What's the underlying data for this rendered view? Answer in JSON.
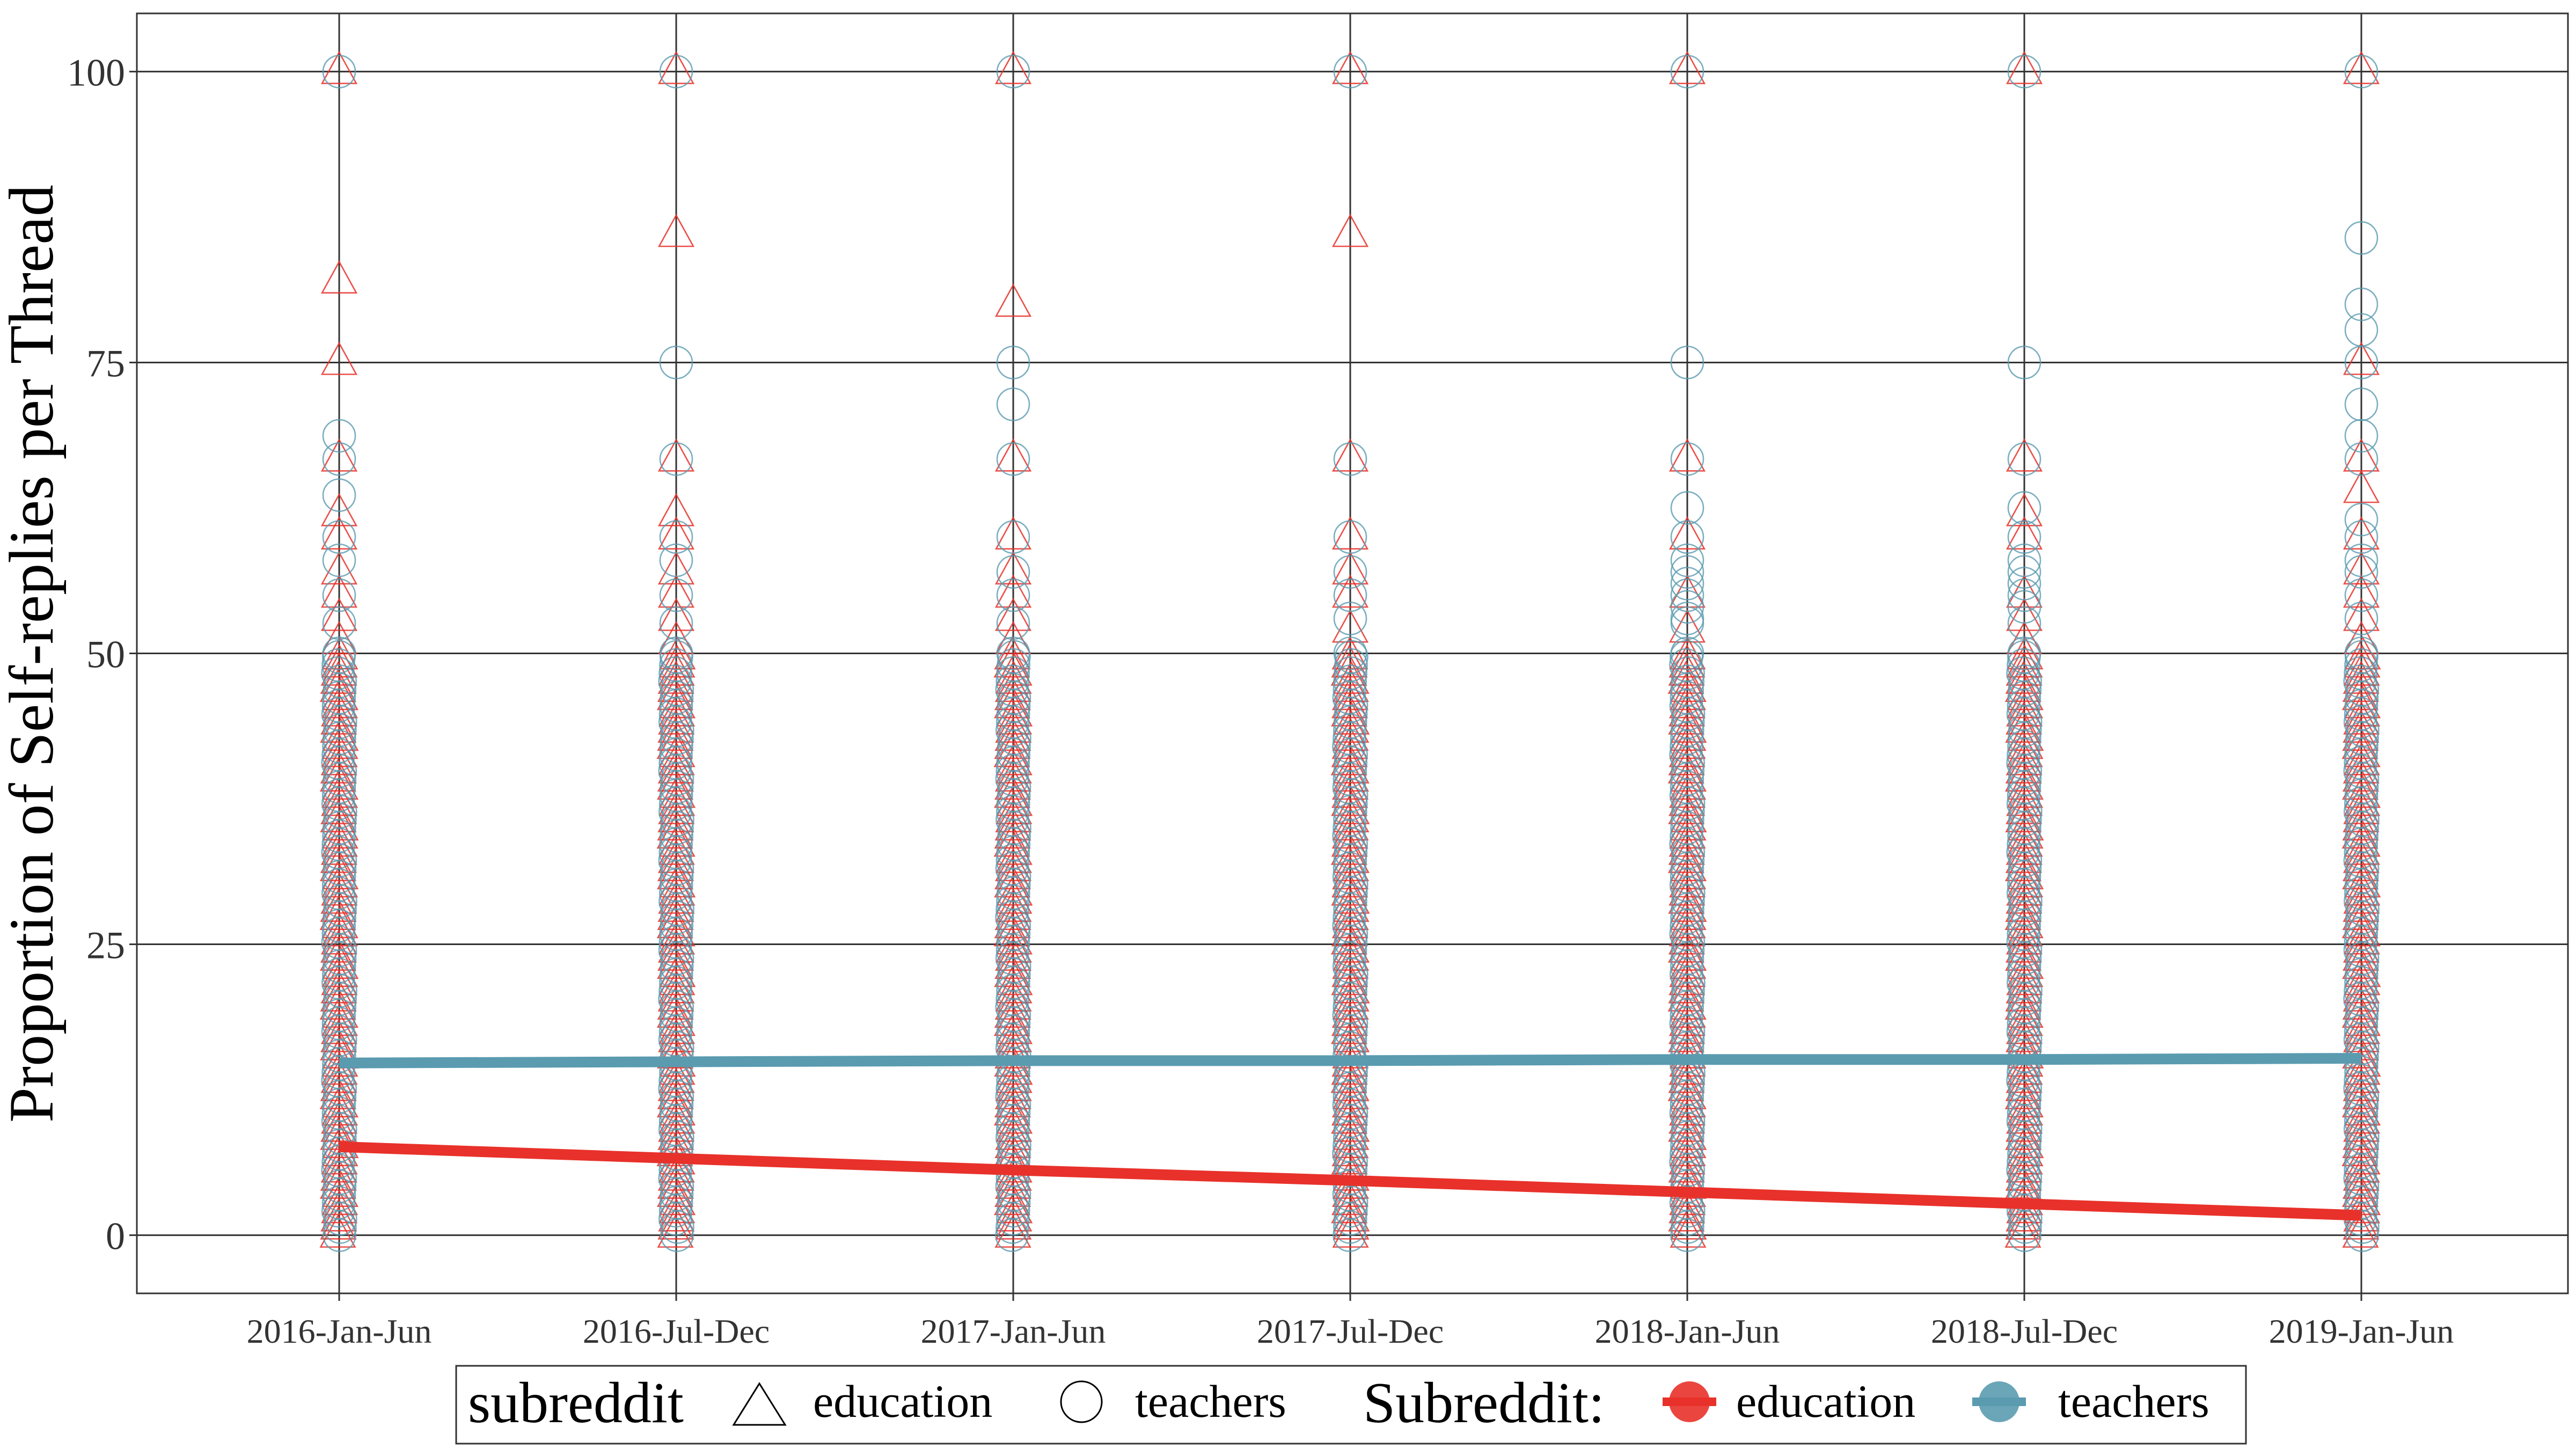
{
  "chart_data": {
    "type": "scatter",
    "title": "",
    "xlabel": "",
    "ylabel": "Proportion of Self-replies per Thread",
    "categories": [
      "2016-Jan-Jun",
      "2016-Jul-Dec",
      "2017-Jan-Jun",
      "2017-Jul-Dec",
      "2018-Jan-Jun",
      "2018-Jul-Dec",
      "2019-Jan-Jun"
    ],
    "ylim": [
      -5,
      105
    ],
    "yticks": [
      0,
      25,
      50,
      75,
      100
    ],
    "grid": true,
    "legend_position": "bottom",
    "legend": {
      "shape_title": "subreddit",
      "shape_items": [
        {
          "label": "education",
          "shape": "triangle"
        },
        {
          "label": "teachers",
          "shape": "circle"
        }
      ],
      "color_title": "Subreddit:",
      "color_items": [
        {
          "label": "education",
          "color": "#E8312A"
        },
        {
          "label": "teachers",
          "color": "#5A9BB0"
        }
      ]
    },
    "series": [
      {
        "name": "education",
        "shape": "triangle",
        "color": "#E8312A",
        "trend": [
          7.6,
          6.6,
          5.6,
          4.7,
          3.7,
          2.7,
          1.7
        ],
        "outliers": [
          [
            100,
            82,
            75,
            66.7,
            62,
            60,
            57,
            55,
            53,
            51
          ],
          [
            100,
            86,
            66.7,
            62,
            60,
            57,
            55,
            53,
            51
          ],
          [
            100,
            80,
            66.7,
            60,
            57,
            55,
            53,
            51
          ],
          [
            100,
            86,
            66.7,
            60,
            57,
            55,
            52
          ],
          [
            100,
            66.7,
            60,
            55,
            52
          ],
          [
            100,
            66.7,
            62,
            60,
            55,
            53,
            51
          ],
          [
            100,
            75,
            66.7,
            64,
            60,
            57,
            55,
            53,
            51
          ]
        ],
        "dense_max": 50
      },
      {
        "name": "teachers",
        "shape": "circle",
        "color": "#5A9BB0",
        "trend": [
          14.8,
          14.9,
          15.0,
          15.0,
          15.1,
          15.1,
          15.2
        ],
        "outliers": [
          [
            100,
            68.7,
            66.7,
            63.6,
            60,
            58,
            55,
            52.6,
            50
          ],
          [
            100,
            75,
            66.7,
            60,
            58,
            55,
            52.6,
            50
          ],
          [
            100,
            75,
            71.4,
            66.7,
            60,
            57,
            55,
            52.6,
            50
          ],
          [
            100,
            66.7,
            60,
            57,
            55,
            53,
            50
          ],
          [
            100,
            75,
            66.7,
            62.5,
            60,
            58,
            57,
            56,
            55,
            54,
            53,
            52.6,
            50
          ],
          [
            100,
            75,
            66.7,
            62.5,
            60,
            58,
            57,
            56,
            55,
            54,
            52.6,
            50
          ],
          [
            100,
            85.7,
            80,
            77.8,
            75,
            71.4,
            68.7,
            66.7,
            61.5,
            60,
            58,
            57,
            55,
            53,
            50
          ]
        ],
        "dense_max": 50
      }
    ]
  }
}
